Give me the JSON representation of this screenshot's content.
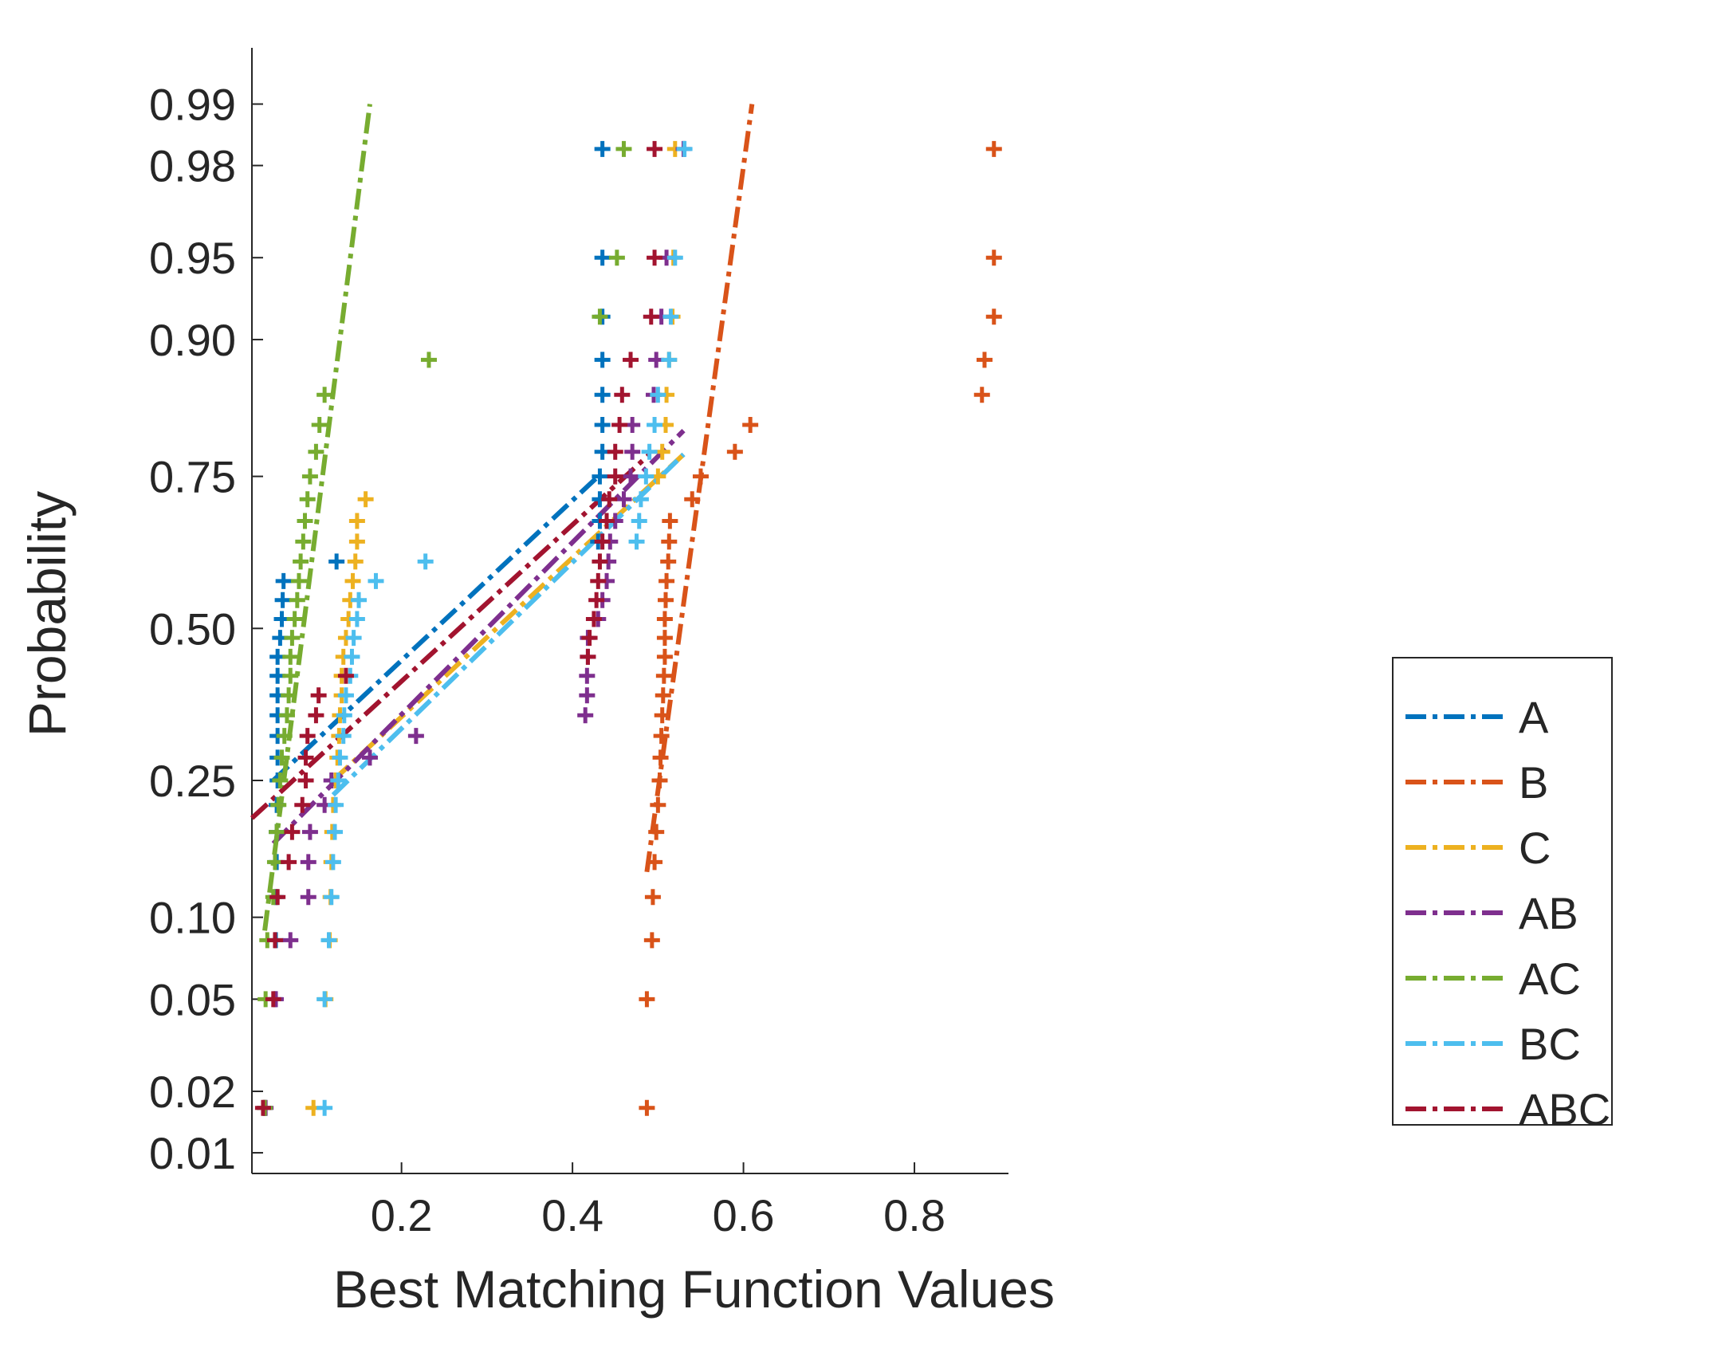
{
  "chart_data": {
    "type": "scatter",
    "title": "",
    "xlabel": "Best Matching Function Values",
    "ylabel": "Probability",
    "xlim": [
      0.025,
      0.91
    ],
    "x_ticks": [
      0.2,
      0.4,
      0.6,
      0.8
    ],
    "x_tick_labels": [
      "0.2",
      "0.4",
      "0.6",
      "0.8"
    ],
    "y_scale": "probit",
    "y_ticks": [
      0.01,
      0.02,
      0.05,
      0.1,
      0.25,
      0.5,
      0.75,
      0.9,
      0.95,
      0.98,
      0.99
    ],
    "y_tick_labels": [
      "0.01",
      "0.02",
      "0.05",
      "0.10",
      "0.25",
      "0.50",
      "0.75",
      "0.90",
      "0.95",
      "0.98",
      "0.99"
    ],
    "grid": false,
    "legend_position": "bottom-right",
    "plotting_positions": [
      0.0167,
      0.05,
      0.0833,
      0.1167,
      0.15,
      0.1833,
      0.2167,
      0.25,
      0.2833,
      0.3167,
      0.35,
      0.3833,
      0.4167,
      0.45,
      0.4833,
      0.5167,
      0.55,
      0.5833,
      0.6167,
      0.65,
      0.6833,
      0.7167,
      0.75,
      0.7833,
      0.8167,
      0.85,
      0.8833,
      0.9167,
      0.95,
      0.9833
    ],
    "series": [
      {
        "name": "A",
        "color": "#0072BD",
        "values": [
          0.04,
          0.052,
          0.053,
          0.053,
          0.054,
          0.054,
          0.054,
          0.055,
          0.055,
          0.055,
          0.055,
          0.055,
          0.055,
          0.055,
          0.058,
          0.06,
          0.061,
          0.062,
          0.124,
          0.43,
          0.432,
          0.432,
          0.432,
          0.435,
          0.435,
          0.435,
          0.435,
          0.435,
          0.435,
          0.435
        ],
        "fit": {
          "p": [
            0.25,
            0.75
          ],
          "x": [
            0.05,
            0.43
          ]
        }
      },
      {
        "name": "B",
        "color": "#D95319",
        "values": [
          0.487,
          0.487,
          0.493,
          0.494,
          0.496,
          0.498,
          0.5,
          0.502,
          0.503,
          0.504,
          0.505,
          0.506,
          0.507,
          0.508,
          0.508,
          0.508,
          0.509,
          0.51,
          0.512,
          0.513,
          0.514,
          0.54,
          0.55,
          0.59,
          0.608,
          0.879,
          0.882,
          0.893,
          0.893,
          0.893
        ],
        "fit": {
          "p": [
            0.14,
            0.99
          ],
          "x": [
            0.487,
            0.61
          ]
        }
      },
      {
        "name": "C",
        "color": "#EDB120",
        "values": [
          0.097,
          0.111,
          0.116,
          0.117,
          0.118,
          0.119,
          0.12,
          0.123,
          0.125,
          0.127,
          0.128,
          0.13,
          0.13,
          0.132,
          0.135,
          0.138,
          0.14,
          0.143,
          0.146,
          0.148,
          0.148,
          0.158,
          0.5,
          0.505,
          0.509,
          0.51,
          0.513,
          0.517,
          0.518,
          0.52
        ],
        "fit": {
          "p": [
            0.25,
            0.78
          ],
          "x": [
            0.12,
            0.53
          ]
        }
      },
      {
        "name": "AB",
        "color": "#7E2F8E",
        "values": [
          0.041,
          0.053,
          0.07,
          0.091,
          0.091,
          0.093,
          0.11,
          0.118,
          0.163,
          0.217,
          0.415,
          0.417,
          0.417,
          0.418,
          0.418,
          0.43,
          0.435,
          0.44,
          0.442,
          0.444,
          0.45,
          0.46,
          0.468,
          0.47,
          0.47,
          0.495,
          0.498,
          0.504,
          0.51,
          0.53
        ],
        "fit": {
          "p": [
            0.17,
            0.81
          ],
          "x": [
            0.05,
            0.53
          ]
        }
      },
      {
        "name": "AC",
        "color": "#77AC30",
        "values": [
          0.04,
          0.041,
          0.043,
          0.05,
          0.052,
          0.054,
          0.056,
          0.058,
          0.06,
          0.063,
          0.066,
          0.068,
          0.07,
          0.07,
          0.072,
          0.075,
          0.078,
          0.08,
          0.082,
          0.085,
          0.087,
          0.09,
          0.093,
          0.1,
          0.104,
          0.11,
          0.232,
          0.432,
          0.452,
          0.46
        ],
        "fit": {
          "p": [
            0.09,
            0.99
          ],
          "x": [
            0.04,
            0.163
          ]
        }
      },
      {
        "name": "BC",
        "color": "#4DBEEE",
        "values": [
          0.11,
          0.11,
          0.115,
          0.118,
          0.12,
          0.122,
          0.123,
          0.126,
          0.128,
          0.132,
          0.133,
          0.135,
          0.14,
          0.142,
          0.144,
          0.148,
          0.15,
          0.17,
          0.228,
          0.475,
          0.478,
          0.48,
          0.486,
          0.49,
          0.496,
          0.5,
          0.513,
          0.515,
          0.52,
          0.531
        ],
        "fit": {
          "p": [
            0.23,
            0.78
          ],
          "x": [
            0.12,
            0.53
          ]
        }
      },
      {
        "name": "ABC",
        "color": "#A2142F",
        "values": [
          0.038,
          0.05,
          0.052,
          0.055,
          0.068,
          0.072,
          0.084,
          0.088,
          0.088,
          0.09,
          0.1,
          0.103,
          0.135,
          0.418,
          0.42,
          0.425,
          0.428,
          0.43,
          0.432,
          0.435,
          0.44,
          0.443,
          0.45,
          0.45,
          0.455,
          0.458,
          0.468,
          0.492,
          0.496,
          0.496
        ],
        "fit": {
          "p": [
            0.2,
            0.78
          ],
          "x": [
            0.025,
            0.49
          ]
        }
      }
    ]
  }
}
